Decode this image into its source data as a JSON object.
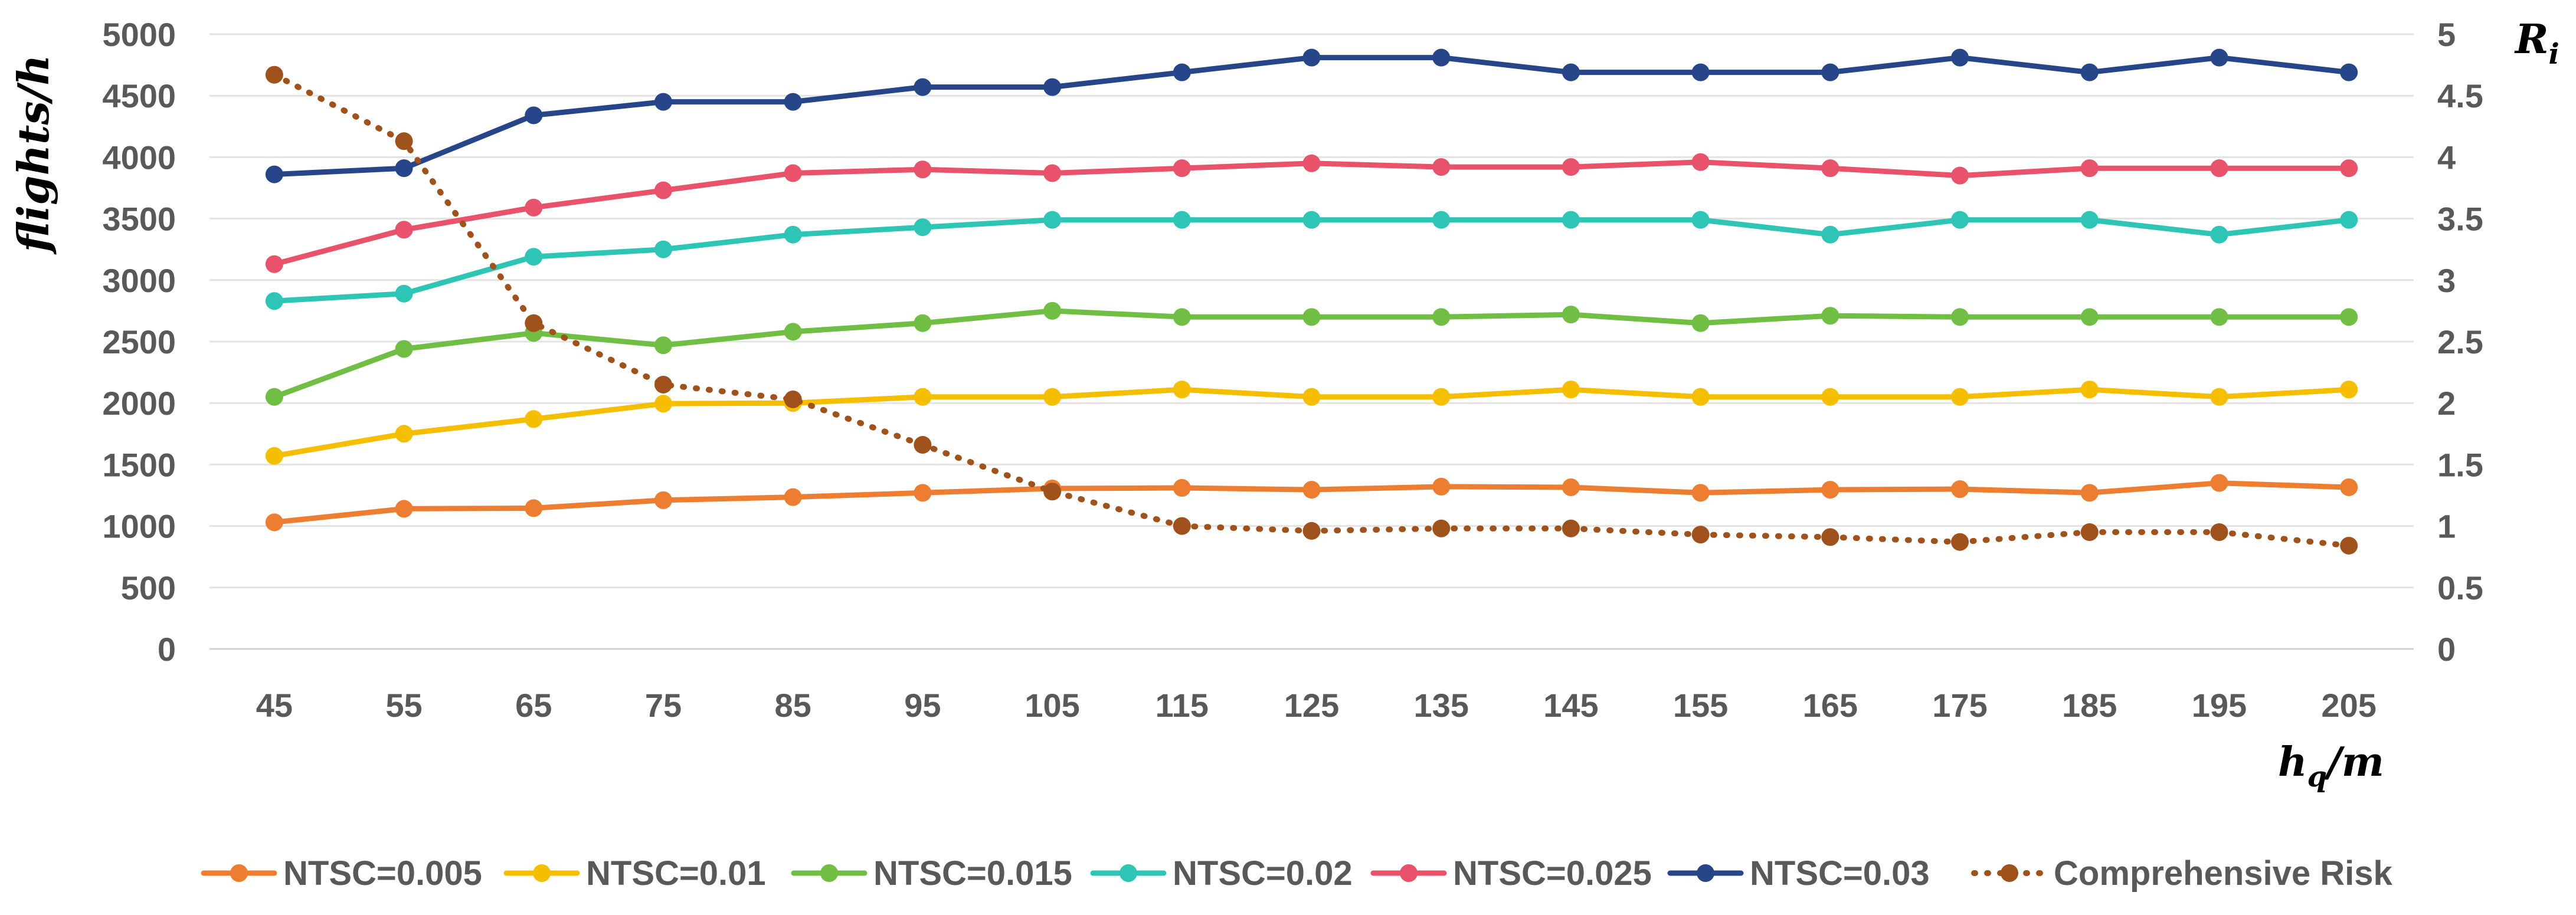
{
  "chart_data": {
    "type": "line",
    "title": "",
    "xlabel": "h_q/m",
    "xlabel_parts": {
      "main": "h",
      "sub": "q",
      "suffix": "/m"
    },
    "ylabel": "flights/h",
    "y2label": "R_i",
    "y2label_parts": {
      "main": "R",
      "sub": "i"
    },
    "categories": [
      "45",
      "55",
      "65",
      "75",
      "85",
      "95",
      "105",
      "115",
      "125",
      "135",
      "145",
      "155",
      "165",
      "175",
      "185",
      "195",
      "205"
    ],
    "ylim": [
      0,
      5000
    ],
    "yticks": [
      "0",
      "500",
      "1000",
      "1500",
      "2000",
      "2500",
      "3000",
      "3500",
      "4000",
      "4500",
      "5000"
    ],
    "y2lim": [
      0,
      5
    ],
    "y2ticks": [
      "0",
      "0.5",
      "1",
      "1.5",
      "2",
      "2.5",
      "3",
      "3.5",
      "4",
      "4.5",
      "5"
    ],
    "grid": true,
    "legend": "bottom",
    "series": [
      {
        "name": "NTSC=0.005",
        "color": "#ED7D31",
        "axis": "left",
        "style": "solid",
        "values": [
          1030,
          1140,
          1145,
          1210,
          1235,
          1270,
          1305,
          1310,
          1295,
          1320,
          1315,
          1270,
          1295,
          1300,
          1270,
          1350,
          1315
        ]
      },
      {
        "name": "NTSC=0.01",
        "color": "#F6BE00",
        "axis": "left",
        "style": "solid",
        "values": [
          1570,
          1750,
          1870,
          1995,
          2000,
          2050,
          2050,
          2110,
          2050,
          2050,
          2110,
          2050,
          2050,
          2050,
          2110,
          2050,
          2110
        ]
      },
      {
        "name": "NTSC=0.015",
        "color": "#70BF44",
        "axis": "left",
        "style": "solid",
        "values": [
          2050,
          2440,
          2570,
          2470,
          2580,
          2650,
          2750,
          2700,
          2700,
          2700,
          2720,
          2650,
          2710,
          2700,
          2700,
          2700,
          2700
        ]
      },
      {
        "name": "NTSC=0.02",
        "color": "#2EC4B6",
        "axis": "left",
        "style": "solid",
        "values": [
          2830,
          2890,
          3190,
          3250,
          3370,
          3430,
          3490,
          3490,
          3490,
          3490,
          3490,
          3490,
          3370,
          3490,
          3490,
          3370,
          3490
        ]
      },
      {
        "name": "NTSC=0.025",
        "color": "#E8526A",
        "axis": "left",
        "style": "solid",
        "values": [
          3130,
          3410,
          3590,
          3730,
          3870,
          3900,
          3870,
          3910,
          3950,
          3920,
          3920,
          3960,
          3910,
          3850,
          3910,
          3910,
          3910
        ]
      },
      {
        "name": "NTSC=0.03",
        "color": "#264689",
        "axis": "left",
        "style": "solid",
        "values": [
          3860,
          3910,
          4340,
          4450,
          4450,
          4570,
          4570,
          4690,
          4810,
          4810,
          4690,
          4690,
          4690,
          4810,
          4690,
          4810,
          4690
        ]
      },
      {
        "name": "Comprehensive Risk",
        "color": "#A0521C",
        "axis": "right",
        "style": "dotted",
        "values": [
          4.67,
          4.13,
          2.65,
          2.15,
          2.03,
          1.66,
          1.28,
          1.0,
          0.96,
          0.98,
          0.98,
          0.93,
          0.91,
          0.87,
          0.95,
          0.95,
          0.84
        ]
      }
    ]
  }
}
